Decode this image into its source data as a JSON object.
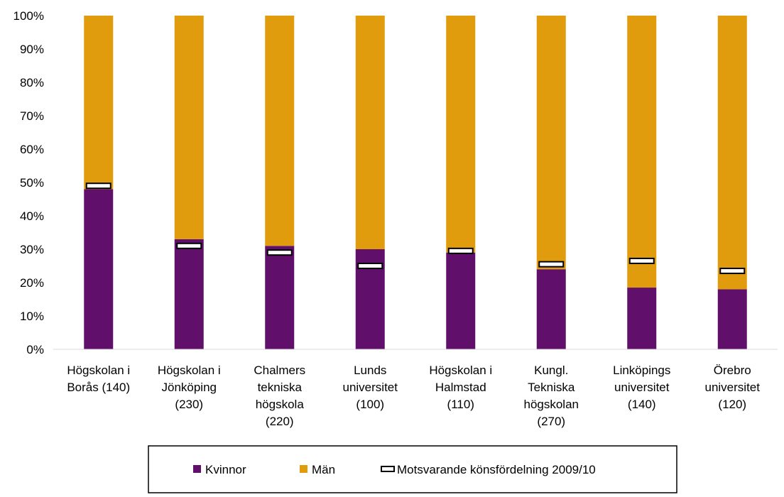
{
  "chart_data": {
    "type": "bar",
    "stacked": true,
    "categories": [
      [
        "Högskolan i",
        "Borås (140)"
      ],
      [
        "Högskolan i",
        "Jönköping",
        "(230)"
      ],
      [
        "Chalmers",
        "tekniska",
        "högskola",
        "(220)"
      ],
      [
        "Lunds",
        "universitet",
        "(100)"
      ],
      [
        "Högskolan i",
        "Halmstad",
        "(110)"
      ],
      [
        "Kungl.",
        "Tekniska",
        "högskolan",
        "(270)"
      ],
      [
        "Linköpings",
        "universitet",
        "(140)"
      ],
      [
        "Örebro",
        "universitet",
        "(120)"
      ]
    ],
    "series": [
      {
        "name": "Kvinnor",
        "color": "#60106a",
        "values": [
          48,
          33,
          31,
          30,
          29,
          24,
          18.5,
          18
        ]
      },
      {
        "name": "Män",
        "color": "#e09c0c",
        "values": [
          52,
          67,
          69,
          70,
          71,
          76,
          81.5,
          82
        ]
      }
    ],
    "markers": {
      "name": "Motsvarande könsfördelning 2009/10",
      "values": [
        49,
        31,
        29,
        25,
        29.5,
        25.5,
        26.5,
        23.5
      ]
    },
    "y_ticks": [
      "0%",
      "10%",
      "20%",
      "30%",
      "40%",
      "50%",
      "60%",
      "70%",
      "80%",
      "90%",
      "100%"
    ],
    "ylim": [
      0,
      100
    ],
    "grid": false,
    "legend_position": "bottom"
  }
}
